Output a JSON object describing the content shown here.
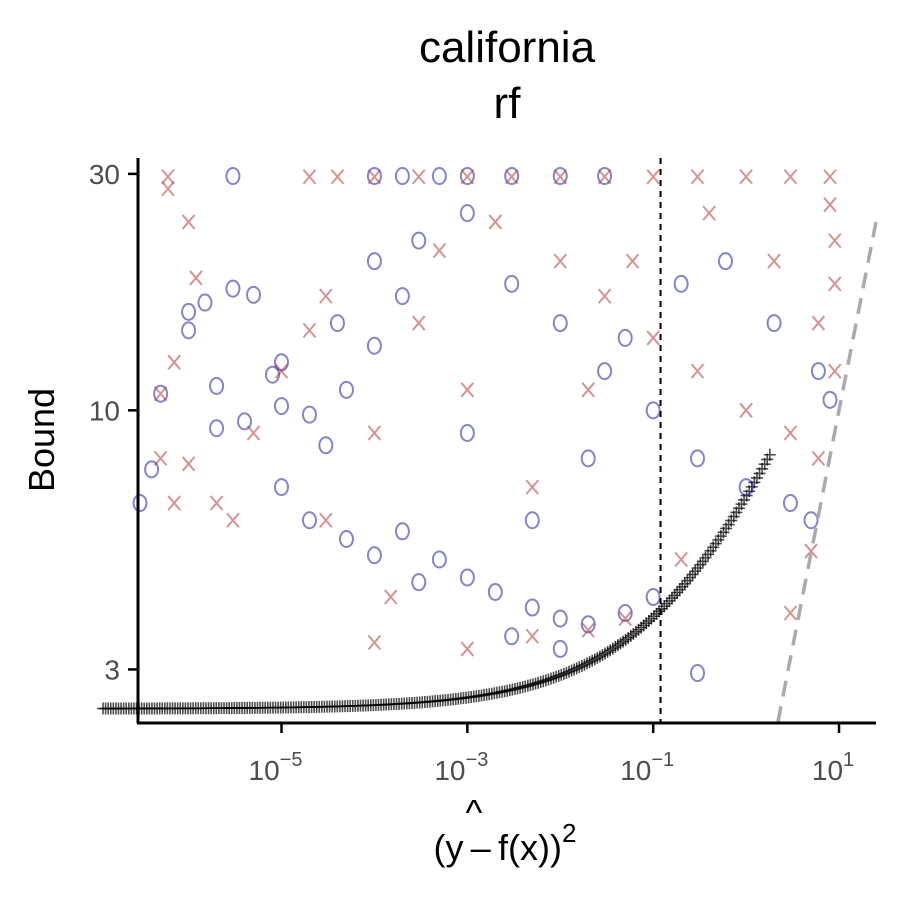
{
  "chart_data": {
    "type": "scatter",
    "title": [
      "california",
      "rf"
    ],
    "xlabel": {
      "base": "(y – ",
      "hat": "^",
      "f": "f",
      "rest": "(x))",
      "sup": "2"
    },
    "ylabel": "Bound",
    "x_scale": "log10",
    "y_scale": "log10",
    "xlim": [
      3e-07,
      25
    ],
    "ylim": [
      2.35,
      32
    ],
    "x_ticks": [
      {
        "value": 1e-05,
        "base": "10",
        "exp": "−5"
      },
      {
        "value": 0.001,
        "base": "10",
        "exp": "−3"
      },
      {
        "value": 0.1,
        "base": "10",
        "exp": "−1"
      },
      {
        "value": 10,
        "base": "10",
        "exp": "1"
      }
    ],
    "y_ticks": [
      {
        "value": 3,
        "label": "3"
      },
      {
        "value": 10,
        "label": "10"
      },
      {
        "value": 30,
        "label": "30"
      }
    ],
    "vline_x": 0.12,
    "grid": false,
    "legend": "none",
    "colors": {
      "circle": "#1f1f9e",
      "cross": "#b23b3b",
      "curve": "#000000",
      "dashed": "#aaaaaa"
    },
    "series": [
      {
        "marker": "circle",
        "points": [
          [
            3e-07,
            6.5
          ],
          [
            4e-07,
            7.6
          ],
          [
            5e-07,
            10.8
          ],
          [
            1e-06,
            14.5
          ],
          [
            1e-06,
            15.8
          ],
          [
            1.5e-06,
            16.5
          ],
          [
            2e-06,
            11.2
          ],
          [
            3e-06,
            17.6
          ],
          [
            5e-06,
            17.1
          ],
          [
            2e-06,
            9.2
          ],
          [
            4e-06,
            9.5
          ],
          [
            8e-06,
            11.8
          ],
          [
            1e-05,
            10.2
          ],
          [
            2e-05,
            9.8
          ],
          [
            5e-05,
            11.0
          ],
          [
            1e-05,
            7.0
          ],
          [
            2e-05,
            6.0
          ],
          [
            5e-05,
            5.5
          ],
          [
            0.0001,
            5.1
          ],
          [
            0.0002,
            5.7
          ],
          [
            0.0005,
            5.0
          ],
          [
            0.001,
            4.6
          ],
          [
            0.002,
            4.3
          ],
          [
            0.005,
            4.0
          ],
          [
            0.01,
            3.8
          ],
          [
            0.02,
            3.7
          ],
          [
            0.05,
            3.9
          ],
          [
            0.1,
            4.2
          ],
          [
            3e-06,
            29.7
          ],
          [
            0.0001,
            29.7
          ],
          [
            0.0002,
            29.7
          ],
          [
            0.0005,
            29.7
          ],
          [
            0.001,
            29.7
          ],
          [
            0.003,
            29.7
          ],
          [
            0.01,
            29.7
          ],
          [
            0.03,
            29.7
          ],
          [
            0.0001,
            20.0
          ],
          [
            0.0003,
            22.0
          ],
          [
            0.001,
            25.0
          ],
          [
            0.003,
            18.0
          ],
          [
            0.01,
            15.0
          ],
          [
            0.03,
            12.0
          ],
          [
            0.1,
            10.0
          ],
          [
            0.3,
            8.0
          ],
          [
            1,
            7.0
          ],
          [
            3,
            6.5
          ],
          [
            5,
            6.0
          ],
          [
            8,
            10.5
          ],
          [
            0.3,
            2.95
          ],
          [
            0.01,
            3.3
          ],
          [
            0.003,
            3.5
          ],
          [
            0.0003,
            4.5
          ],
          [
            3e-05,
            8.5
          ],
          [
            1e-05,
            12.5
          ],
          [
            0.0001,
            13.5
          ],
          [
            0.001,
            9.0
          ],
          [
            0.005,
            6.0
          ],
          [
            0.02,
            8.0
          ],
          [
            0.05,
            14.0
          ],
          [
            0.2,
            18.0
          ],
          [
            0.6,
            20.0
          ],
          [
            2,
            15.0
          ],
          [
            6,
            12.0
          ],
          [
            4e-05,
            15.0
          ],
          [
            0.0002,
            17.0
          ]
        ]
      },
      {
        "marker": "cross",
        "points": [
          [
            6e-07,
            29.6
          ],
          [
            6e-07,
            28.0
          ],
          [
            1e-06,
            24.0
          ],
          [
            1.2e-06,
            18.5
          ],
          [
            7e-07,
            12.5
          ],
          [
            5e-07,
            10.8
          ],
          [
            5e-07,
            8.0
          ],
          [
            7e-07,
            6.5
          ],
          [
            1e-06,
            7.8
          ],
          [
            2e-06,
            6.5
          ],
          [
            3e-06,
            6.0
          ],
          [
            5e-06,
            9.0
          ],
          [
            1e-05,
            12.0
          ],
          [
            2e-05,
            14.5
          ],
          [
            3e-05,
            17.0
          ],
          [
            0.0001,
            3.4
          ],
          [
            0.001,
            3.3
          ],
          [
            0.005,
            3.5
          ],
          [
            0.02,
            3.6
          ],
          [
            0.05,
            3.8
          ],
          [
            2e-05,
            29.6
          ],
          [
            4e-05,
            29.6
          ],
          [
            0.0001,
            29.6
          ],
          [
            0.0003,
            29.6
          ],
          [
            0.001,
            29.6
          ],
          [
            0.003,
            29.6
          ],
          [
            0.01,
            29.6
          ],
          [
            0.03,
            29.6
          ],
          [
            0.1,
            29.6
          ],
          [
            0.3,
            29.6
          ],
          [
            1,
            29.6
          ],
          [
            3,
            29.6
          ],
          [
            8,
            29.6
          ],
          [
            0.0005,
            21.0
          ],
          [
            0.002,
            24.0
          ],
          [
            0.01,
            20.0
          ],
          [
            0.03,
            17.0
          ],
          [
            0.1,
            14.0
          ],
          [
            0.3,
            12.0
          ],
          [
            1,
            10.0
          ],
          [
            3,
            9.0
          ],
          [
            6,
            8.0
          ],
          [
            9,
            12.0
          ],
          [
            9,
            18.0
          ],
          [
            9,
            22.0
          ],
          [
            8,
            26.0
          ],
          [
            5,
            5.2
          ],
          [
            3,
            3.9
          ],
          [
            0.2,
            5.0
          ],
          [
            0.005,
            7.0
          ],
          [
            0.001,
            11.0
          ],
          [
            0.0003,
            15.0
          ],
          [
            0.0001,
            9.0
          ],
          [
            3e-05,
            6.0
          ],
          [
            0.02,
            11.0
          ],
          [
            0.06,
            20.0
          ],
          [
            0.4,
            25.0
          ],
          [
            2,
            20.0
          ],
          [
            6,
            15.0
          ],
          [
            0.00015,
            4.2
          ]
        ]
      }
    ],
    "reference_curve": {
      "marker": "plus",
      "y_min": 2.5,
      "x_start": 1.2e-07,
      "x_end": 1.8
    },
    "dashed_line": {
      "from": [
        2.2,
        2.35
      ],
      "to": [
        25,
        24.0
      ]
    }
  }
}
